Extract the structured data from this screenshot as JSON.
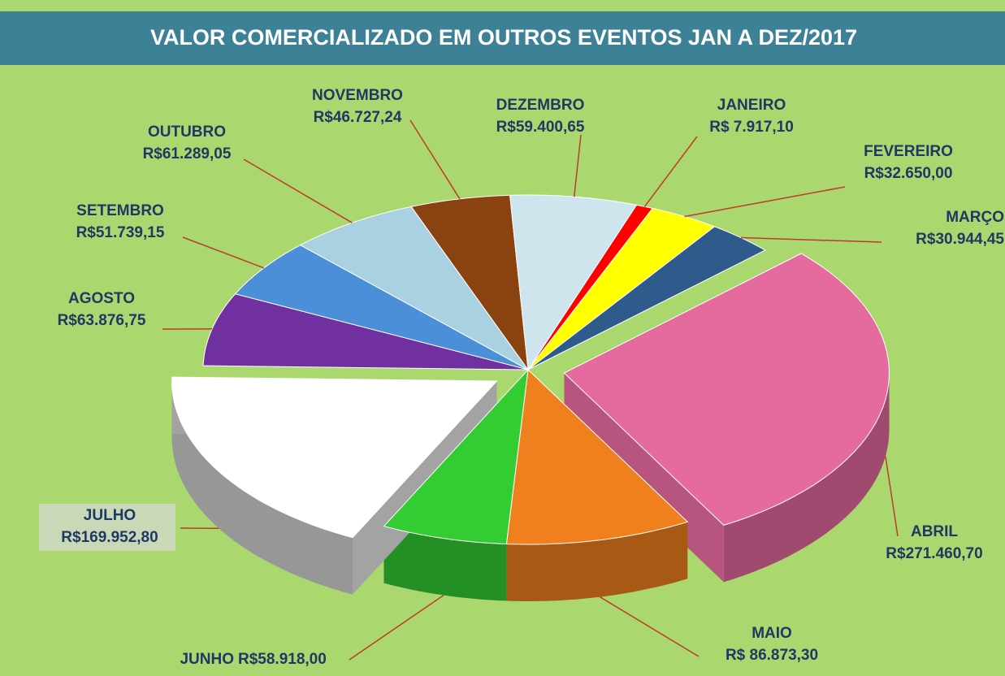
{
  "chart_data": {
    "type": "pie",
    "title": "VALOR COMERCIALIZADO EM  OUTROS EVENTOS  JAN A  DEZ/2017",
    "categories": [
      "JANEIRO",
      "FEVEREIRO",
      "MARÇO",
      "ABRIL",
      "MAIO",
      "JUNHO",
      "JULHO",
      "AGOSTO",
      "SETEMBRO",
      "OUTUBRO",
      "NOVEMBRO",
      "DEZEMBRO"
    ],
    "values": [
      7917.1,
      32650.0,
      30944.45,
      271460.7,
      86873.3,
      58918.0,
      169952.8,
      63876.75,
      51739.15,
      61289.05,
      46727.24,
      59400.65
    ],
    "value_labels": [
      "R$ 7.917,10",
      "R$32.650,00",
      "R$30.944,45",
      "R$271.460,70",
      "R$ 86.873,30",
      "R$58.918,00",
      "R$169.952,80",
      "R$63.876,75",
      "R$51.739,15",
      "R$61.289,05",
      "R$46.727,24",
      "R$59.400,65"
    ],
    "colors": [
      "#ff0000",
      "#ffff00",
      "#2f5b8c",
      "#e56a9e",
      "#f0801e",
      "#33cc33",
      "#ffffff",
      "#7030a0",
      "#4a8fd8",
      "#a9d1e1",
      "#8a4210",
      "#cfe5ee"
    ]
  }
}
